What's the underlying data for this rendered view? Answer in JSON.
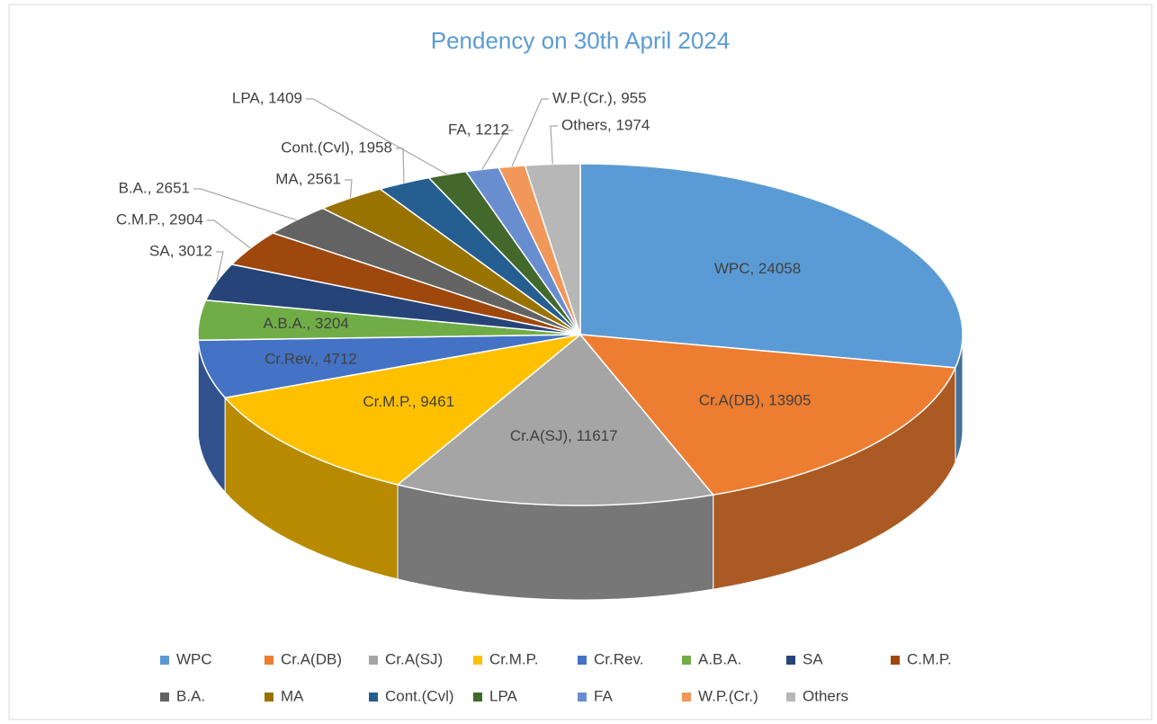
{
  "chart_data": {
    "type": "pie",
    "title": "Pendency on 30th April 2024",
    "categories": [
      "WPC",
      "Cr.A(DB)",
      "Cr.A(SJ)",
      "Cr.M.P.",
      "Cr.Rev.",
      "A.B.A.",
      "SA",
      "C.M.P.",
      "B.A.",
      "MA",
      "Cont.(Cvl)",
      "LPA",
      "FA",
      "W.P.(Cr.)",
      "Others"
    ],
    "values": [
      24058,
      13905,
      11617,
      9461,
      4712,
      3204,
      3012,
      2904,
      2651,
      2561,
      1958,
      1409,
      1212,
      955,
      1974
    ],
    "value_labels": [
      "WPC, 24058",
      "Cr.A(DB), 13905",
      "Cr.A(SJ), 11617",
      "Cr.M.P., 9461",
      "Cr.Rev., 4712",
      "A.B.A., 3204",
      "SA, 3012",
      "C.M.P., 2904",
      "B.A., 2651",
      "MA, 2561",
      "Cont.(Cvl), 1958",
      "LPA, 1409",
      "FA, 1212",
      "W.P.(Cr.), 955",
      "Others, 1974"
    ],
    "colors": [
      "#5b9bd5",
      "#ed7d31",
      "#a5a5a5",
      "#ffc000",
      "#4472c4",
      "#70ad47",
      "#264478",
      "#9e480e",
      "#636363",
      "#997300",
      "#255e91",
      "#43682b",
      "#698ed0",
      "#f1975a",
      "#b7b7b7"
    ],
    "legend": "bottom"
  }
}
